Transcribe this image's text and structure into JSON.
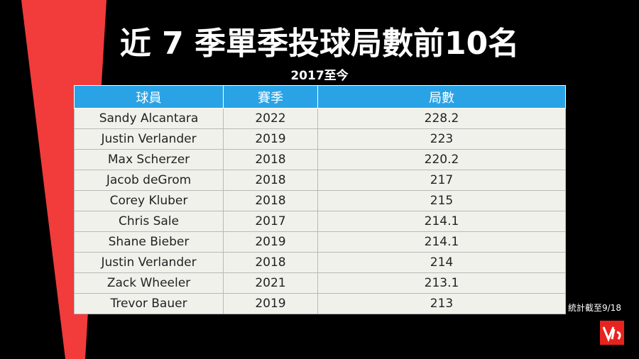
{
  "header": {
    "title": "近 7 季單季投球局數前10名",
    "subtitle": "2017至今"
  },
  "table": {
    "columns": [
      "球員",
      "賽季",
      "局數"
    ],
    "rows": [
      [
        "Sandy Alcantara",
        "2022",
        "228.2"
      ],
      [
        "Justin Verlander",
        "2019",
        "223"
      ],
      [
        "Max Scherzer",
        "2018",
        "220.2"
      ],
      [
        "Jacob deGrom",
        "2018",
        "217"
      ],
      [
        "Corey Kluber",
        "2018",
        "215"
      ],
      [
        "Chris Sale",
        "2017",
        "214.1"
      ],
      [
        "Shane Bieber",
        "2019",
        "214.1"
      ],
      [
        "Justin Verlander",
        "2018",
        "214"
      ],
      [
        "Zack Wheeler",
        "2021",
        "213.1"
      ],
      [
        "Trevor Bauer",
        "2019",
        "213"
      ]
    ]
  },
  "footer": {
    "note": "統計截至9/18"
  }
}
